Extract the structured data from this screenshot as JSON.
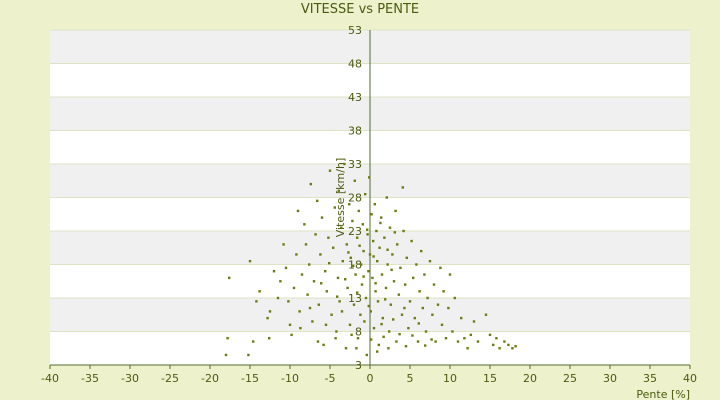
{
  "chart_data": {
    "type": "scatter",
    "title": "VITESSE vs PENTE",
    "xlabel": "Pente [%]",
    "ylabel": "Vitesse [km/h]",
    "xlim": [
      -40,
      40
    ],
    "ylim": [
      3,
      53
    ],
    "xticks": [
      -40,
      -35,
      -30,
      -25,
      -20,
      -15,
      -10,
      -5,
      0,
      5,
      10,
      15,
      20,
      25,
      30,
      35,
      40
    ],
    "yticks": [
      3,
      8,
      13,
      18,
      23,
      28,
      33,
      38,
      43,
      48,
      53
    ],
    "grid": "horizontal bands",
    "legend": "none",
    "colors": {
      "background": "#edf2cc",
      "band_light": "#ffffff",
      "band_dark": "#f0f0f0",
      "axis": "#556b2f",
      "marker": "#6b7a12",
      "text": "#4b5a12"
    },
    "series": [
      {
        "values": [
          [
            -18,
            4.5
          ],
          [
            -17.8,
            7
          ],
          [
            -17.6,
            16
          ],
          [
            -15.2,
            4.5
          ],
          [
            -15,
            18.5
          ],
          [
            -14.6,
            6.5
          ],
          [
            -14.2,
            12.5
          ],
          [
            -13.8,
            14
          ],
          [
            -12.8,
            10
          ],
          [
            -12.6,
            7
          ],
          [
            -12.5,
            11
          ],
          [
            -12,
            17
          ],
          [
            -11.5,
            13
          ],
          [
            -11.2,
            15.5
          ],
          [
            -10.8,
            21
          ],
          [
            -10.5,
            17.5
          ],
          [
            -10.2,
            12.5
          ],
          [
            -10,
            9
          ],
          [
            -9.8,
            7.5
          ],
          [
            -9.5,
            14.5
          ],
          [
            -9.2,
            19.5
          ],
          [
            -9,
            26
          ],
          [
            -8.8,
            11
          ],
          [
            -8.5,
            16.5
          ],
          [
            -8.2,
            24
          ],
          [
            -8,
            21
          ],
          [
            -7.8,
            13.5
          ],
          [
            -7.6,
            18
          ],
          [
            -7.4,
            30
          ],
          [
            -7.2,
            9.5
          ],
          [
            -7,
            15.5
          ],
          [
            -6.8,
            22.5
          ],
          [
            -6.6,
            27.5
          ],
          [
            -6.4,
            12
          ],
          [
            -6.2,
            19.5
          ],
          [
            -6,
            25
          ],
          [
            -5.8,
            6
          ],
          [
            -5.6,
            17
          ],
          [
            -5.4,
            14
          ],
          [
            -5.2,
            22
          ],
          [
            -5,
            32
          ],
          [
            -4.8,
            10.5
          ],
          [
            -4.6,
            20.5
          ],
          [
            -4.4,
            26.5
          ],
          [
            -4.2,
            8
          ],
          [
            -4,
            16
          ],
          [
            -3.9,
            29
          ],
          [
            -3.8,
            12.5
          ],
          [
            -3.6,
            23.5
          ],
          [
            -3.4,
            18.5
          ],
          [
            -3.2,
            33
          ],
          [
            -3,
            5.5
          ],
          [
            -2.9,
            21
          ],
          [
            -2.8,
            14.5
          ],
          [
            -2.6,
            27
          ],
          [
            -2.5,
            9
          ],
          [
            -2.4,
            19
          ],
          [
            -2.2,
            24.5
          ],
          [
            -2,
            12
          ],
          [
            -1.9,
            30.5
          ],
          [
            -1.8,
            16.5
          ],
          [
            -1.6,
            22
          ],
          [
            -1.5,
            7
          ],
          [
            -1.4,
            26
          ],
          [
            -1.2,
            10.5
          ],
          [
            -1.1,
            18
          ],
          [
            -1,
            15
          ],
          [
            -0.9,
            24
          ],
          [
            -0.8,
            20
          ],
          [
            -0.6,
            28.5
          ],
          [
            -0.5,
            13
          ],
          [
            -0.4,
            4.5
          ],
          [
            -0.3,
            22.5
          ],
          [
            -0.2,
            17
          ],
          [
            -0.1,
            31
          ],
          [
            0,
            19.5
          ],
          [
            0.1,
            11
          ],
          [
            0.2,
            25.5
          ],
          [
            0.3,
            16
          ],
          [
            0.4,
            21.5
          ],
          [
            0.5,
            8.5
          ],
          [
            0.6,
            27
          ],
          [
            0.7,
            14
          ],
          [
            0.8,
            23
          ],
          [
            0.9,
            18.5
          ],
          [
            1,
            12.5
          ],
          [
            1.1,
            6
          ],
          [
            1.2,
            20.5
          ],
          [
            1.4,
            25
          ],
          [
            1.5,
            16.5
          ],
          [
            1.6,
            10
          ],
          [
            1.8,
            22
          ],
          [
            2,
            14.5
          ],
          [
            2.1,
            28
          ],
          [
            2.2,
            18
          ],
          [
            2.4,
            8
          ],
          [
            2.5,
            23.5
          ],
          [
            2.6,
            12
          ],
          [
            2.8,
            19.5
          ],
          [
            3,
            15.5
          ],
          [
            3.2,
            26
          ],
          [
            3.3,
            6.5
          ],
          [
            3.4,
            21
          ],
          [
            3.6,
            13.5
          ],
          [
            3.8,
            17.5
          ],
          [
            4,
            10.5
          ],
          [
            4.1,
            29.5
          ],
          [
            4.2,
            23
          ],
          [
            4.4,
            15
          ],
          [
            4.6,
            19
          ],
          [
            4.8,
            8.5
          ],
          [
            5,
            12.5
          ],
          [
            5.2,
            21.5
          ],
          [
            5.4,
            16
          ],
          [
            5.6,
            10
          ],
          [
            5.8,
            18
          ],
          [
            6,
            6.5
          ],
          [
            6.2,
            14
          ],
          [
            6.4,
            20
          ],
          [
            6.6,
            11.5
          ],
          [
            6.8,
            16.5
          ],
          [
            7,
            8
          ],
          [
            7.2,
            13
          ],
          [
            7.5,
            18.5
          ],
          [
            7.8,
            10.5
          ],
          [
            8,
            15
          ],
          [
            8.2,
            6.5
          ],
          [
            8.5,
            12
          ],
          [
            8.8,
            17.5
          ],
          [
            9,
            9
          ],
          [
            9.2,
            14
          ],
          [
            9.5,
            7
          ],
          [
            9.8,
            11.5
          ],
          [
            10,
            16.5
          ],
          [
            10.3,
            8
          ],
          [
            10.6,
            13
          ],
          [
            11,
            6.5
          ],
          [
            11.4,
            10
          ],
          [
            11.8,
            7
          ],
          [
            12.2,
            5.5
          ],
          [
            12.6,
            7.5
          ],
          [
            13,
            9.5
          ],
          [
            13.5,
            6.5
          ],
          [
            14.5,
            10.5
          ],
          [
            15,
            7.5
          ],
          [
            15.4,
            6
          ],
          [
            15.8,
            7
          ],
          [
            16.2,
            5.5
          ],
          [
            16.8,
            6.5
          ],
          [
            17.3,
            6
          ],
          [
            17.8,
            5.5
          ],
          [
            18.2,
            5.8
          ],
          [
            -3.5,
            11
          ],
          [
            -2.3,
            7.5
          ],
          [
            -1.7,
            5.5
          ],
          [
            -0.7,
            9.5
          ],
          [
            0.15,
            6.8
          ],
          [
            0.9,
            5
          ],
          [
            1.7,
            7.2
          ],
          [
            2.3,
            5.5
          ],
          [
            2.9,
            9.8
          ],
          [
            3.7,
            7.6
          ],
          [
            4.5,
            5.8
          ],
          [
            5.3,
            7.4
          ],
          [
            6.1,
            9.2
          ],
          [
            6.9,
            5.9
          ],
          [
            7.7,
            6.8
          ],
          [
            4.3,
            11.5
          ],
          [
            -4.3,
            7
          ],
          [
            -5.5,
            9
          ],
          [
            -6.5,
            6.5
          ],
          [
            -7.5,
            11.5
          ],
          [
            -8.7,
            8.5
          ],
          [
            -3.1,
            15.8
          ],
          [
            -2.1,
            17.8
          ],
          [
            -1.3,
            20.8
          ],
          [
            -0.35,
            23.2
          ],
          [
            0.45,
            19.2
          ],
          [
            1.3,
            24.2
          ],
          [
            2.2,
            20.2
          ],
          [
            3.1,
            22.8
          ],
          [
            -1.6,
            13.8
          ],
          [
            -0.8,
            16.2
          ],
          [
            0.7,
            15.2
          ],
          [
            1.9,
            12.8
          ],
          [
            2.7,
            17.2
          ],
          [
            -2.7,
            19.8
          ],
          [
            -4.1,
            13.2
          ],
          [
            -5.1,
            18.2
          ],
          [
            -6.1,
            15.2
          ],
          [
            1.45,
            9.1
          ],
          [
            -0.15,
            11.8
          ]
        ]
      }
    ]
  }
}
